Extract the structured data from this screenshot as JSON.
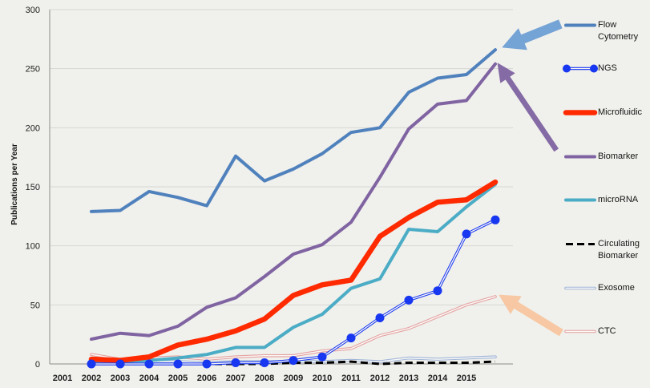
{
  "chart_data": {
    "type": "line",
    "ylabel": "Publications per Year",
    "x": [
      2002,
      2003,
      2004,
      2005,
      2006,
      2007,
      2008,
      2009,
      2010,
      2011,
      2012,
      2013,
      2014,
      2015,
      2016
    ],
    "x_tick_labels": [
      "2001",
      "2002",
      "2003",
      "2004",
      "2005",
      "2006",
      "2007",
      "2008",
      "2009",
      "2010",
      "2011",
      "2012",
      "2013",
      "2014",
      "2015"
    ],
    "xlim": [
      2001,
      2016
    ],
    "ylim": [
      0,
      300
    ],
    "y_ticks": [
      0,
      50,
      100,
      150,
      200,
      250,
      300
    ],
    "grid": "horizontal",
    "legend_position": "right",
    "series": [
      {
        "name": "Flow Cytometry",
        "color": "#4F81BD",
        "line": "solid",
        "values": [
          129,
          130,
          146,
          141,
          134,
          176,
          155,
          165,
          178,
          196,
          200,
          230,
          242,
          245,
          266
        ]
      },
      {
        "name": "NGS",
        "color": "#1737F0",
        "line": "double",
        "marker": "circle",
        "values": [
          0,
          0,
          0,
          0,
          0,
          1,
          1,
          3,
          6,
          22,
          39,
          54,
          62,
          110,
          122
        ]
      },
      {
        "name": "Microfluidic",
        "color": "#FF2A00",
        "line": "solid",
        "values": [
          4,
          3,
          6,
          16,
          21,
          28,
          38,
          58,
          67,
          71,
          108,
          124,
          137,
          139,
          154
        ]
      },
      {
        "name": "Biomarker",
        "color": "#8064A2",
        "line": "solid",
        "values": [
          21,
          26,
          24,
          32,
          48,
          56,
          74,
          93,
          101,
          120,
          158,
          199,
          220,
          223,
          254
        ]
      },
      {
        "name": "microRNA",
        "color": "#4BACC6",
        "line": "solid",
        "values": [
          1,
          2,
          3,
          5,
          8,
          14,
          14,
          31,
          42,
          64,
          72,
          114,
          112,
          133,
          152
        ]
      },
      {
        "name": "Circulating Biomarker",
        "color": "#000000",
        "line": "dashed",
        "values": [
          0,
          0,
          0,
          0,
          0,
          0,
          0,
          1,
          1,
          2,
          0,
          1,
          1,
          1,
          2
        ]
      },
      {
        "name": "Exosome",
        "color": "#9EB4D8",
        "line": "double",
        "values": [
          1,
          1,
          2,
          2,
          1,
          2,
          2,
          2,
          2,
          3,
          2,
          5,
          4,
          5,
          6
        ]
      },
      {
        "name": "CTC",
        "color": "#E4A1A1",
        "line": "double",
        "values": [
          8,
          4,
          5,
          6,
          4,
          6,
          7,
          7,
          11,
          13,
          24,
          30,
          40,
          50,
          57
        ]
      }
    ],
    "arrow_colors": [
      "#6E9FD5",
      "#8064A2",
      "#F8C6A0"
    ]
  }
}
